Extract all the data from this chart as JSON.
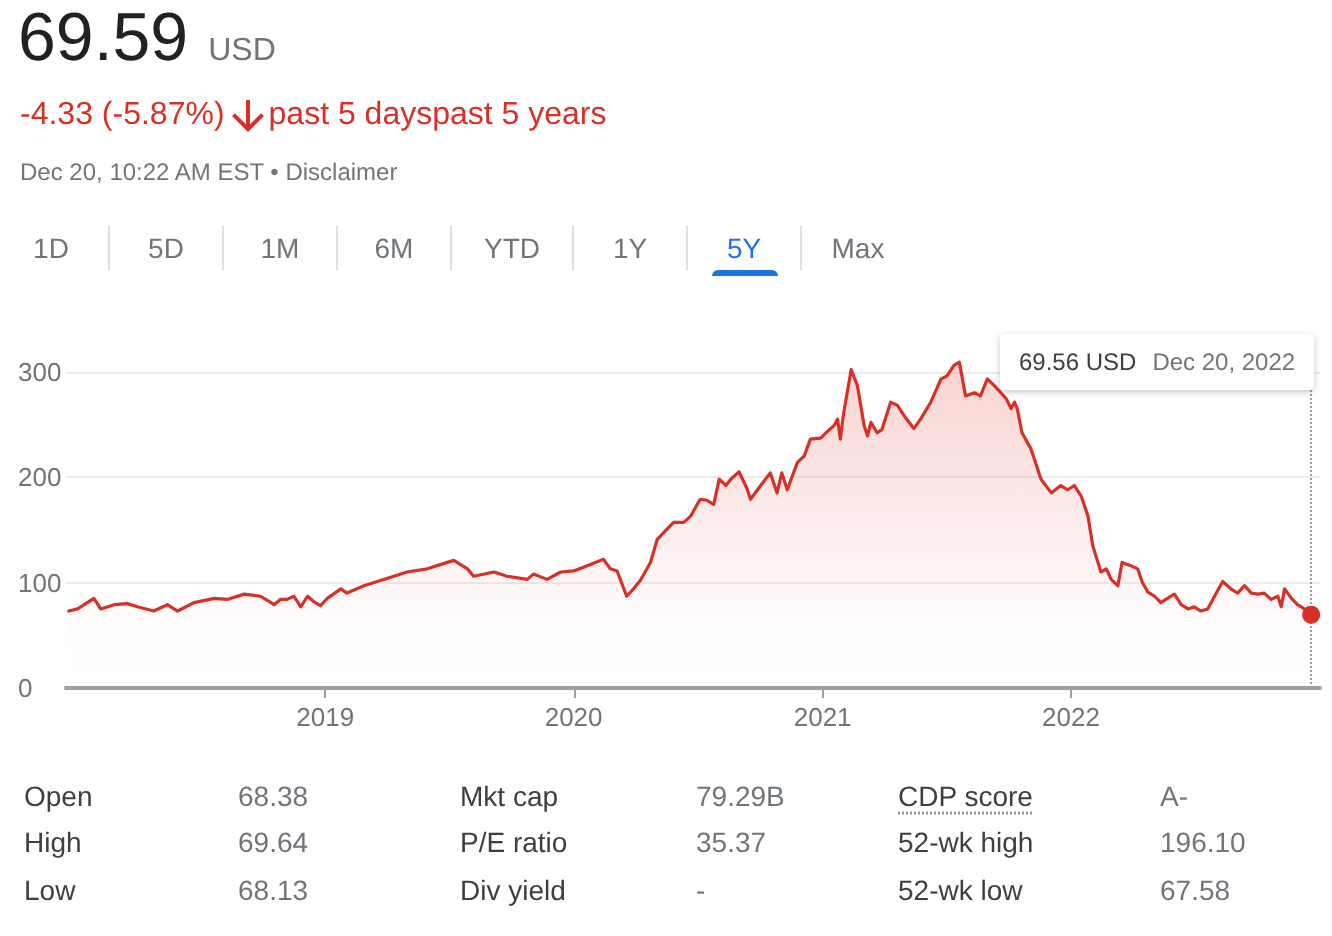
{
  "chart_data": {
    "type": "area",
    "title": "69.59 USD",
    "subtitle": "-4.33 (-5.87%)",
    "annotations": [
      "past 5 dayspast 5 years",
      "Dec 20, 10:22 AM EST • Disclaimer",
      "1D",
      "5D",
      "1M",
      "6M",
      "YTD",
      "1Y",
      "5Y",
      "Max",
      "Open",
      "68.38",
      "Mkt cap",
      "79.29B",
      "CDP score",
      "A-",
      "High",
      "69.64",
      "P/E ratio",
      "35.37",
      "52-wk high",
      "196.10",
      "Low",
      "68.13",
      "Div yield",
      "-",
      "52-wk low",
      "67.58"
    ],
    "x": [
      "2017-12-20",
      "2018-01-02",
      "2018-01-26",
      "2018-02-05",
      "2018-02-25",
      "2018-03-16",
      "2018-03-31",
      "2018-04-24",
      "2018-05-14",
      "2018-05-29",
      "2018-06-22",
      "2018-07-22",
      "2018-08-10",
      "2018-09-04",
      "2018-09-28",
      "2018-10-18",
      "2018-10-27",
      "2018-11-06",
      "2018-11-16",
      "2018-11-26",
      "2018-12-06",
      "2018-12-15",
      "2018-12-25",
      "2019-01-04",
      "2019-01-24",
      "2019-02-02",
      "2019-02-27",
      "2019-03-23",
      "2019-04-12",
      "2019-05-01",
      "2019-05-31",
      "2019-06-19",
      "2019-07-09",
      "2019-07-29",
      "2019-08-07",
      "2019-09-06",
      "2019-09-25",
      "2019-10-25",
      "2019-11-03",
      "2019-11-23",
      "2019-12-13",
      "2020-01-01",
      "2020-01-21",
      "2020-02-14",
      "2020-02-24",
      "2020-03-05",
      "2020-03-19",
      "2020-03-29",
      "2020-04-08",
      "2020-04-23",
      "2020-05-03",
      "2020-05-12",
      "2020-05-27",
      "2020-06-11",
      "2020-06-21",
      "2020-07-05",
      "2020-07-15",
      "2020-07-25",
      "2020-08-02",
      "2020-08-12",
      "2020-08-19",
      "2020-08-31",
      "2020-09-12",
      "2020-09-17",
      "2020-10-02",
      "2020-10-16",
      "2020-10-26",
      "2020-11-02",
      "2020-11-10",
      "2020-11-25",
      "2020-12-05",
      "2020-12-14",
      "2020-12-29",
      "2021-01-06",
      "2021-01-18",
      "2021-01-23",
      "2021-01-27",
      "2021-02-01",
      "2021-02-12",
      "2021-02-21",
      "2021-03-03",
      "2021-03-08",
      "2021-03-13",
      "2021-03-22",
      "2021-03-29",
      "2021-04-11",
      "2021-04-21",
      "2021-05-01",
      "2021-05-15",
      "2021-05-25",
      "2021-06-09",
      "2021-06-24",
      "2021-07-03",
      "2021-07-13",
      "2021-07-21",
      "2021-07-30",
      "2021-08-12",
      "2021-08-21",
      "2021-08-31",
      "2021-09-10",
      "2021-09-20",
      "2021-09-28",
      "2021-10-05",
      "2021-10-10",
      "2021-10-14",
      "2021-10-21",
      "2021-11-03",
      "2021-11-18",
      "2021-12-03",
      "2021-12-17",
      "2021-12-27",
      "2022-01-06",
      "2022-01-16",
      "2022-01-26",
      "2022-02-02",
      "2022-02-14",
      "2022-02-22",
      "2022-03-01",
      "2022-03-11",
      "2022-03-17",
      "2022-03-30",
      "2022-04-09",
      "2022-04-16",
      "2022-04-24",
      "2022-05-04",
      "2022-05-13",
      "2022-06-02",
      "2022-06-12",
      "2022-06-22",
      "2022-07-01",
      "2022-07-11",
      "2022-07-21",
      "2022-07-31",
      "2022-08-12",
      "2022-08-24",
      "2022-09-03",
      "2022-09-13",
      "2022-09-23",
      "2022-10-03",
      "2022-10-12",
      "2022-10-22",
      "2022-11-01",
      "2022-11-06",
      "2022-11-11",
      "2022-11-21",
      "2022-11-30",
      "2022-12-10",
      "2022-12-20"
    ],
    "values": [
      73,
      75,
      85,
      75,
      79,
      80,
      77,
      73,
      79,
      73,
      81,
      85,
      84,
      89,
      87,
      79,
      84,
      84,
      87,
      77,
      87,
      82,
      78,
      85,
      94,
      90,
      97,
      102,
      106,
      110,
      113,
      117,
      121,
      113,
      106,
      110,
      106,
      103,
      108,
      103,
      110,
      111,
      116,
      122,
      113,
      111,
      87,
      94,
      102,
      119,
      141,
      147,
      157,
      157,
      163,
      179,
      178,
      174,
      198,
      192,
      198,
      205,
      189,
      179,
      192,
      204,
      185,
      204,
      188,
      214,
      220,
      236,
      237,
      242,
      249,
      255,
      236,
      261,
      302,
      287,
      249,
      239,
      252,
      242,
      245,
      271,
      268,
      258,
      246,
      255,
      271,
      293,
      296,
      306,
      309,
      277,
      280,
      277,
      293,
      287,
      280,
      274,
      265,
      271,
      265,
      242,
      227,
      198,
      185,
      192,
      188,
      192,
      182,
      163,
      135,
      110,
      113,
      103,
      97,
      119,
      116,
      113,
      100,
      91,
      87,
      81,
      89,
      79,
      75,
      77,
      73,
      75,
      87,
      101,
      94,
      90,
      97,
      90,
      89,
      90,
      84,
      87,
      77,
      94,
      85,
      79,
      75,
      69.56
    ],
    "color": "#d93025",
    "xlim": [
      "2017-12-16",
      "2023-01-02"
    ],
    "xticks": [
      "2019",
      "2020",
      "2021",
      "2022"
    ],
    "ylim": [
      0,
      330
    ],
    "yticks": [
      0,
      100,
      200,
      300
    ],
    "grid": "y",
    "marker": "none",
    "line_style": "solid",
    "ref_lines": [
      {
        "axis": "x",
        "value": "2022-12-20",
        "label": "69.56 USD  Dec 20, 2022",
        "color": "#9aa0a6",
        "line_style": "dotted"
      }
    ]
  }
}
